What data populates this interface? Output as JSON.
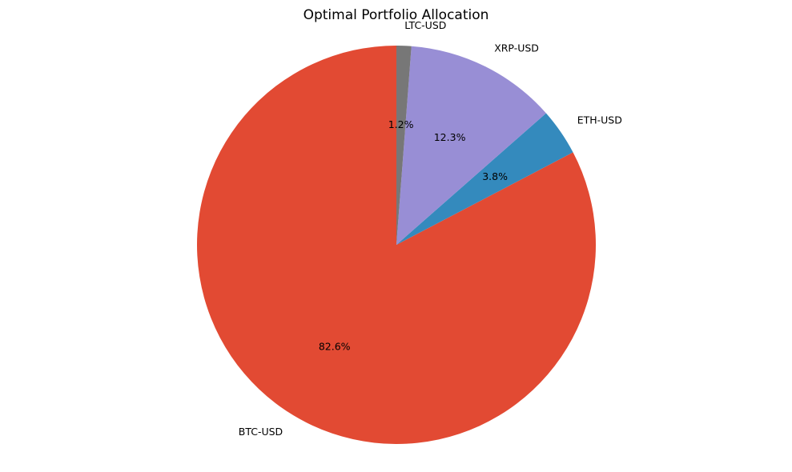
{
  "chart_data": {
    "type": "pie",
    "title": "Optimal Portfolio Allocation",
    "start_angle_deg": 90,
    "direction": "counterclockwise",
    "slices": [
      {
        "label": "BTC-USD",
        "value": 82.6,
        "pct_label": "82.6%",
        "color": "#E24A33"
      },
      {
        "label": "ETH-USD",
        "value": 3.8,
        "pct_label": "3.8%",
        "color": "#348ABD"
      },
      {
        "label": "XRP-USD",
        "value": 12.3,
        "pct_label": "12.3%",
        "color": "#988ED5"
      },
      {
        "label": "LTC-USD",
        "value": 1.2,
        "pct_label": "1.2%",
        "color": "#777777"
      }
    ]
  }
}
